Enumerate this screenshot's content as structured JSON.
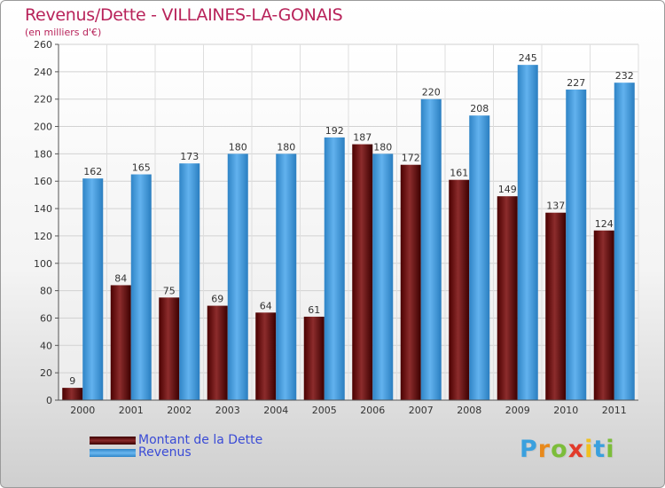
{
  "title": "Revenus/Dette - VILLAINES-LA-GONAIS",
  "subtitle": "(en milliers d'€)",
  "logo": {
    "letters": [
      "P",
      "r",
      "o",
      "x",
      "i",
      "t",
      "i"
    ],
    "colors": [
      "#3aa0de",
      "#e8891c",
      "#7cbd3a",
      "#e23a2a",
      "#f0c020",
      "#3aa0de",
      "#7cbd3a"
    ]
  },
  "chart_data": {
    "type": "bar",
    "categories": [
      "2000",
      "2001",
      "2002",
      "2003",
      "2004",
      "2005",
      "2006",
      "2007",
      "2008",
      "2009",
      "2010",
      "2011"
    ],
    "series": [
      {
        "name": "Montant de la Dette",
        "color": "#7a1d1f",
        "values": [
          9,
          84,
          75,
          69,
          64,
          61,
          187,
          172,
          161,
          149,
          137,
          124
        ]
      },
      {
        "name": "Revenus",
        "color": "#4a9fe0",
        "values": [
          162,
          165,
          173,
          180,
          180,
          192,
          180,
          220,
          208,
          245,
          227,
          232
        ]
      }
    ],
    "ylim": [
      0,
      260
    ],
    "yticks": [
      "0",
      "20",
      "40",
      "60",
      "80",
      "100",
      "120",
      "140",
      "160",
      "180",
      "200",
      "220",
      "240",
      "260"
    ],
    "grid": true,
    "legend": "bottom-left"
  }
}
